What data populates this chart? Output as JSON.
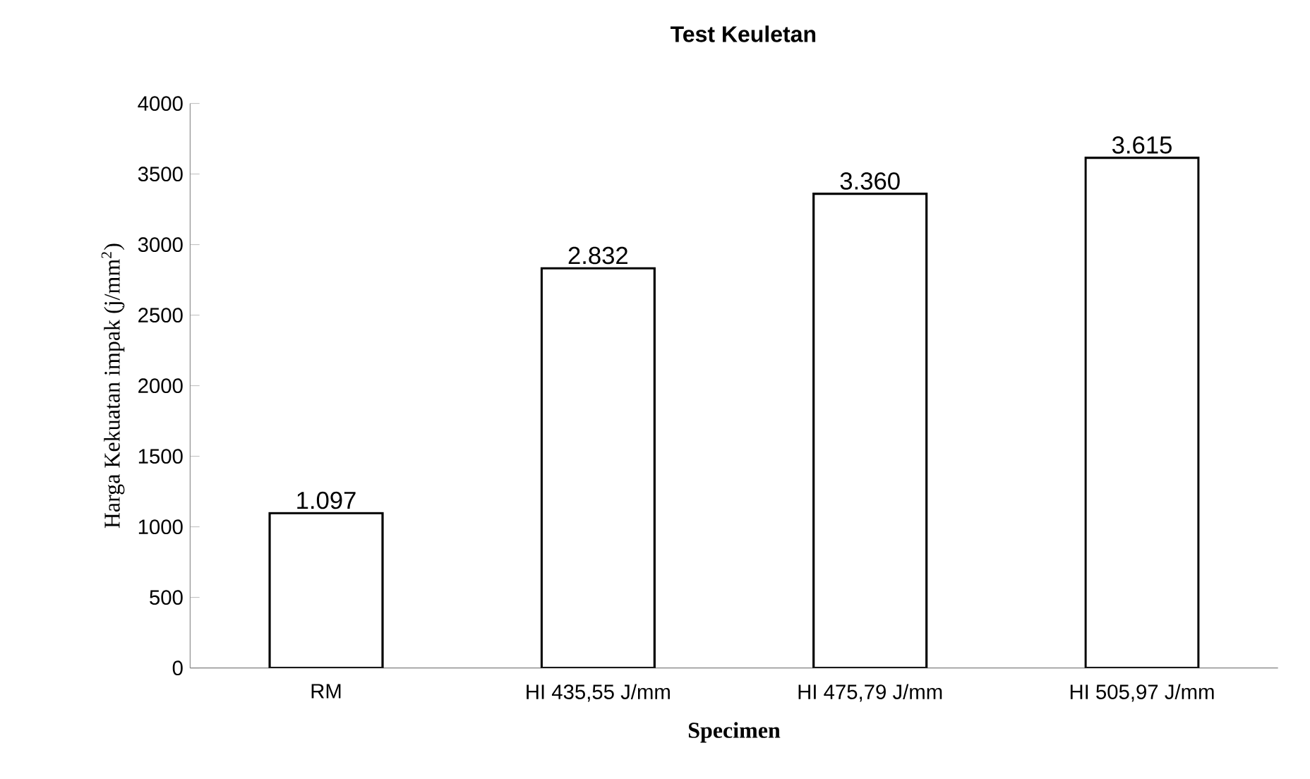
{
  "chart_data": {
    "type": "bar",
    "title": "Test Keuletan",
    "xlabel": "Specimen",
    "ylabel": "Harga Kekuatan impak (j/mm$^{2}$)",
    "categories": [
      "RM",
      "HI 435,55 J/mm",
      "HI 475,79 J/mm",
      "HI 505,97 J/mm"
    ],
    "values": [
      1097,
      2832,
      3360,
      3615
    ],
    "value_labels": [
      "1.097",
      "2.832",
      "3.360",
      "3.615"
    ],
    "colors": [
      "#000000",
      "#000000",
      "#000000",
      "#000000"
    ],
    "ylim": [
      0,
      4000
    ],
    "yticks": [
      0,
      500,
      1000,
      1500,
      2000,
      2500,
      3000,
      3500,
      4000
    ],
    "grid": false
  }
}
